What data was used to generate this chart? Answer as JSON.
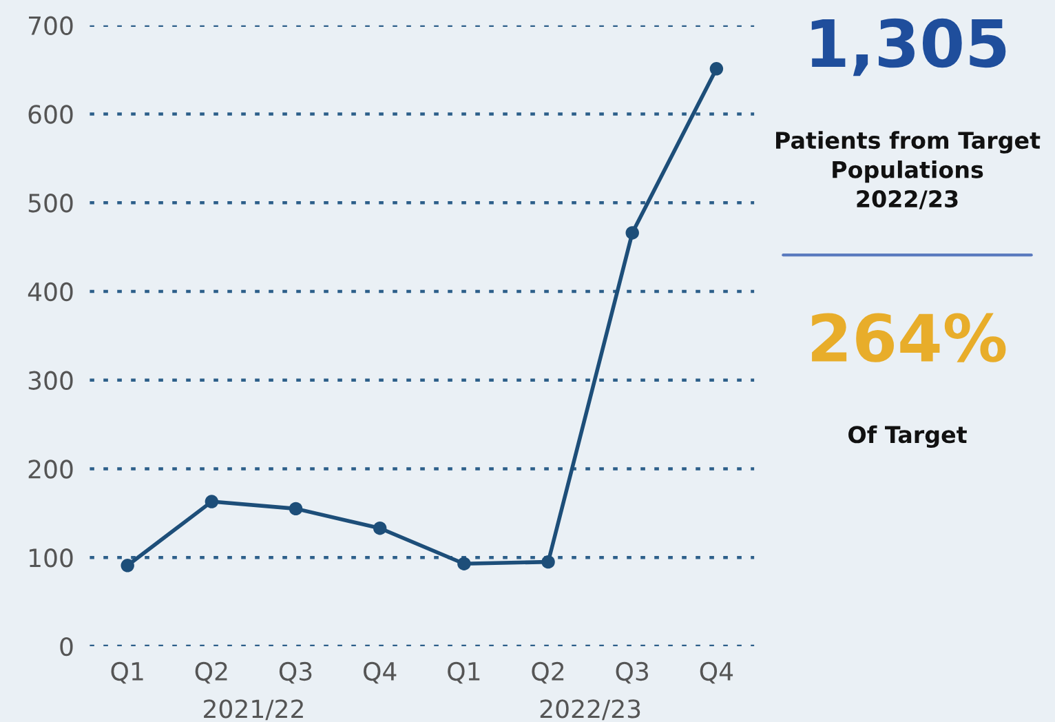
{
  "chart_data": [
    {
      "type": "line",
      "categories": [
        "Q1",
        "Q2",
        "Q3",
        "Q4",
        "Q1",
        "Q2",
        "Q3",
        "Q4"
      ],
      "series": [
        {
          "color": "#1d4e79",
          "values": [
            91,
            163,
            155,
            133,
            93,
            95,
            466,
            651
          ]
        }
      ],
      "ylim": [
        0,
        700
      ],
      "yticks": [
        0,
        100,
        200,
        300,
        400,
        500,
        600,
        700
      ],
      "grid": "y",
      "marker": "circle",
      "line_style": "solid",
      "annotations": [
        "2021/22",
        "2022/23"
      ]
    },
    {
      "type": "other",
      "title": "1,305",
      "annotations": [
        "Patients from Target\nPopulations\n2022/23",
        "264%",
        "Of Target"
      ]
    }
  ]
}
